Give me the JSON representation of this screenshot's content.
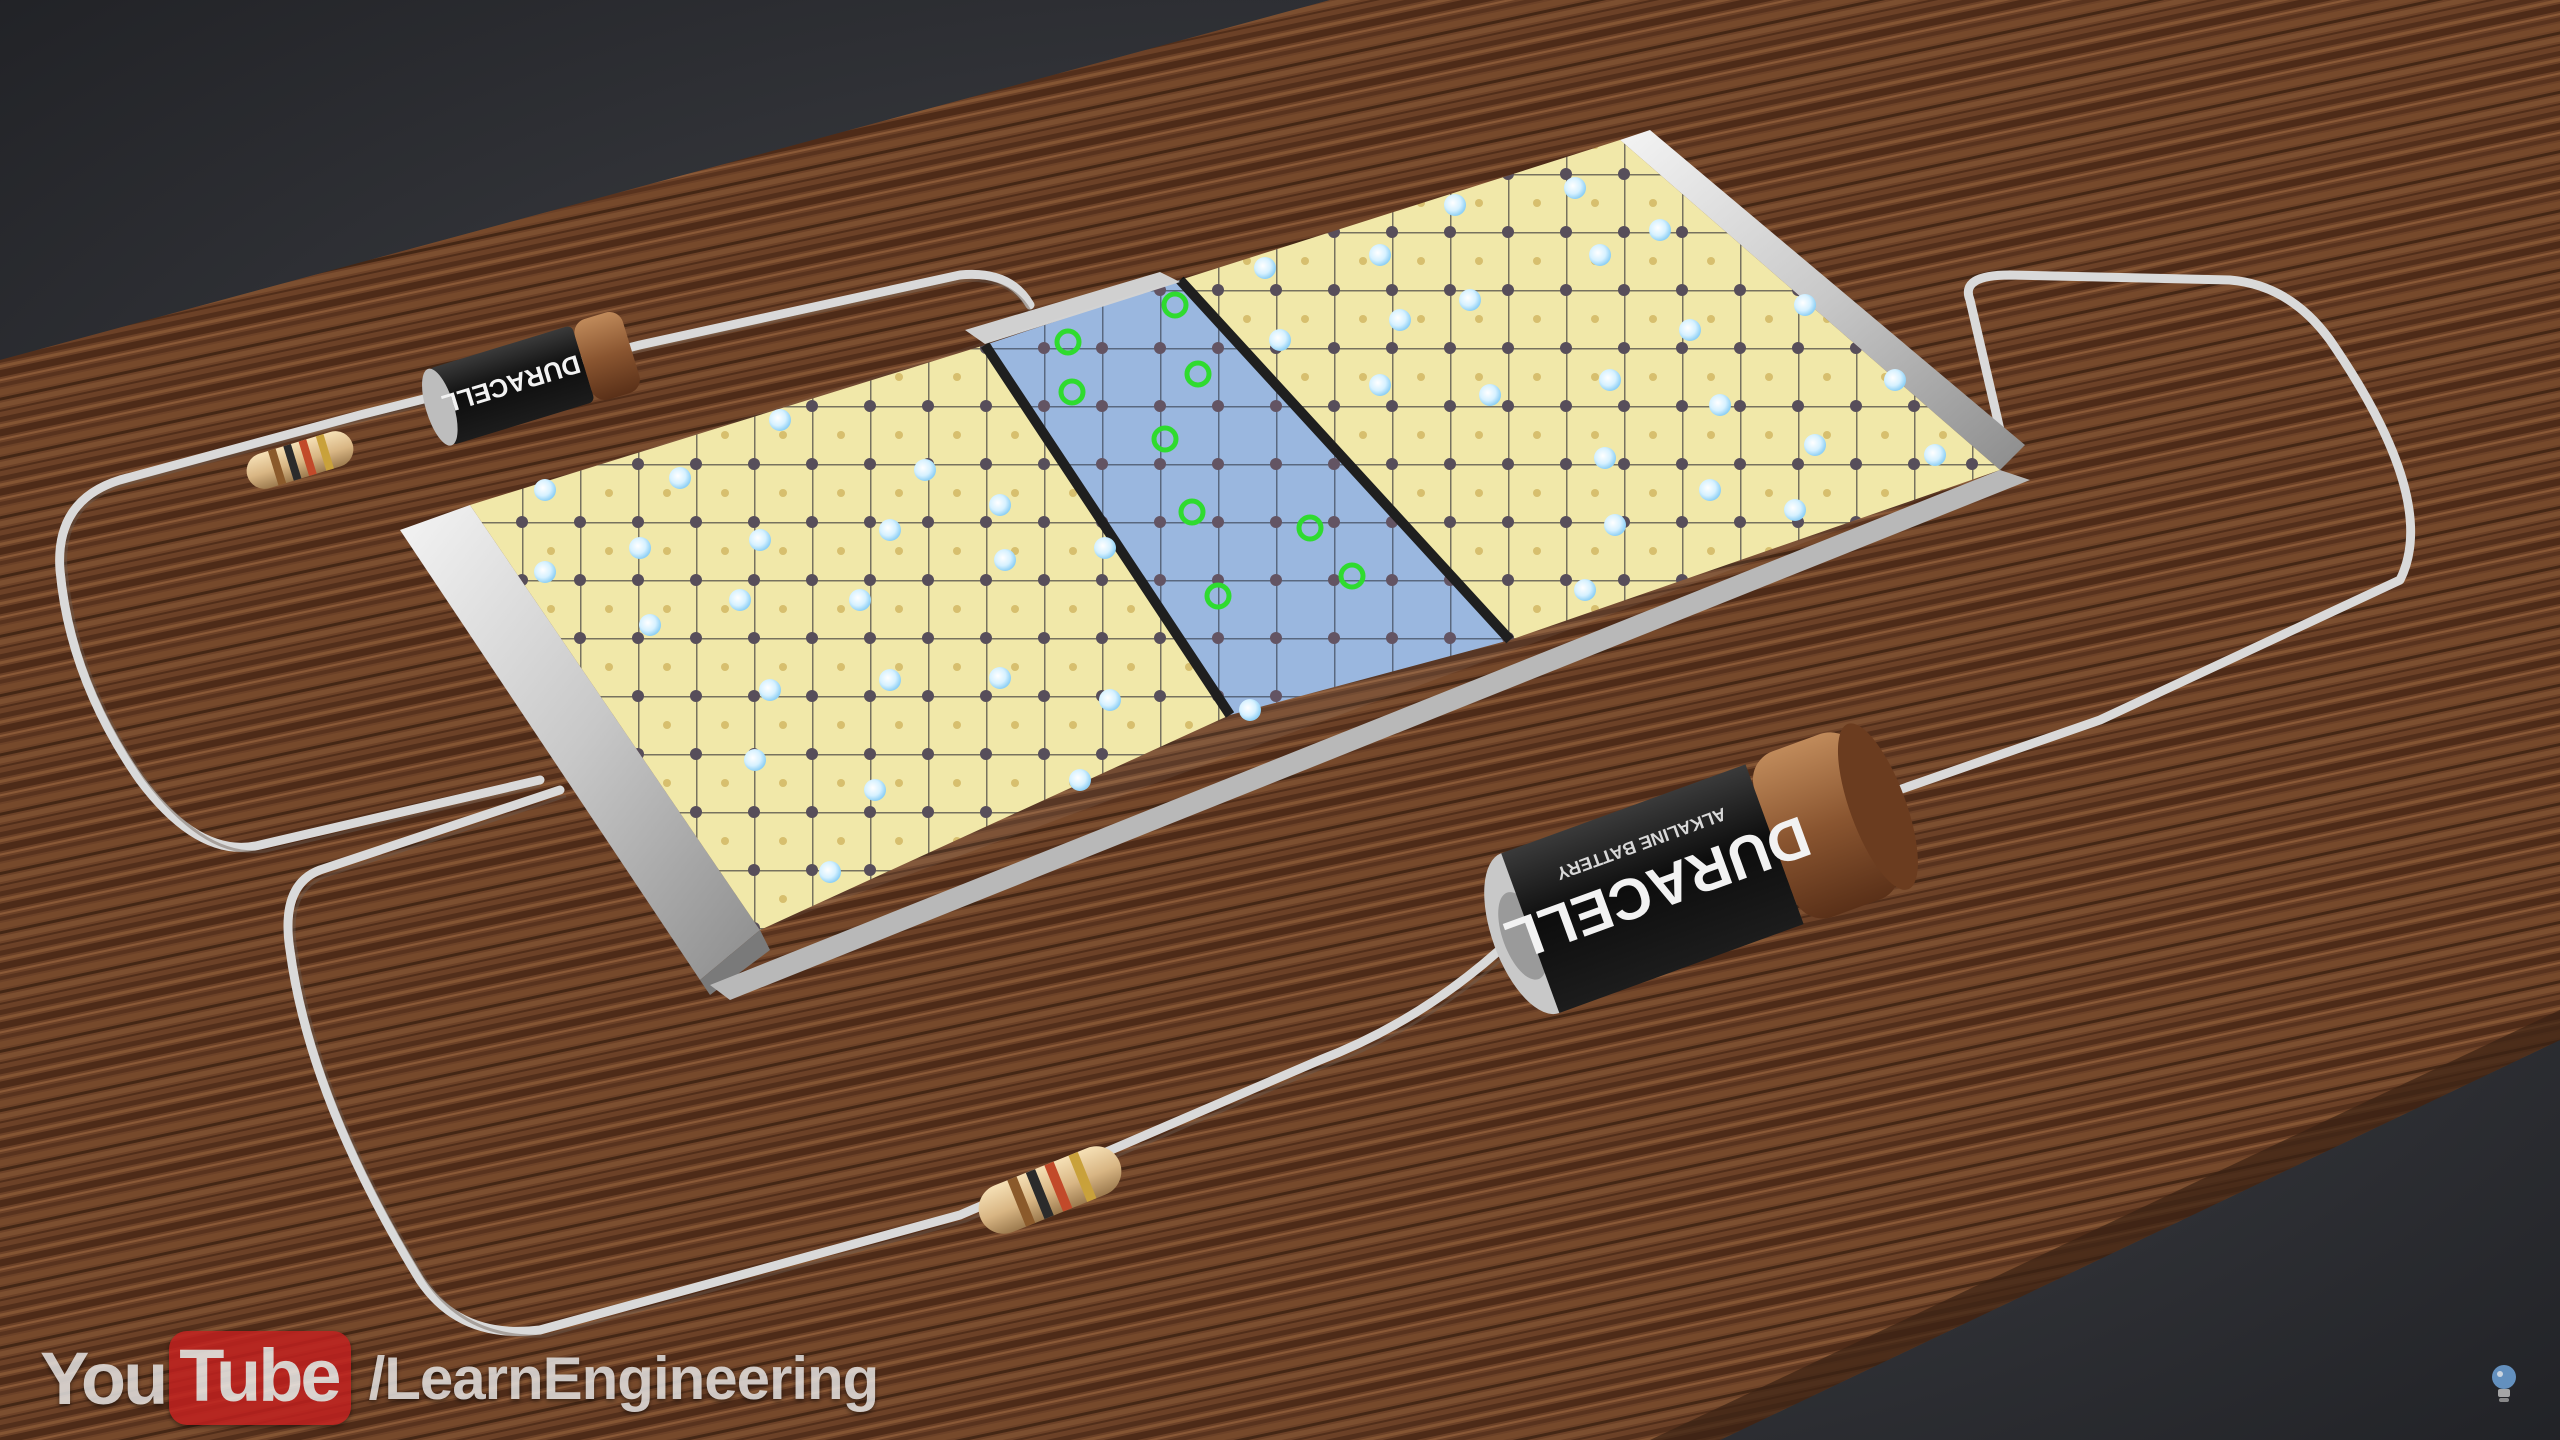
{
  "scene": {
    "background_color": "#2b2d31",
    "table_color": "#7a4a2c",
    "n_region_color": "#f0e6a0",
    "p_region_color": "#8fb0dc",
    "electron_color": "#dff4ff",
    "hole_color": "#33dd33",
    "wire_color": "#d8d8d8",
    "battery_label": "DURACELL",
    "battery_sublabel": "ALKALINE BATTERY"
  },
  "watermark": {
    "you": "You",
    "tube": "Tube",
    "channel": "/LearnEngineering"
  },
  "corner_logo_icon": "bulb-logo-icon"
}
